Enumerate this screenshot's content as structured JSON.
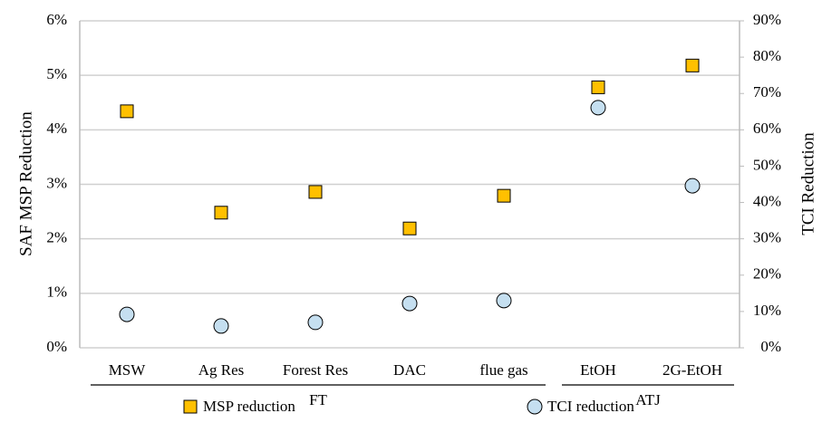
{
  "chart_data": {
    "type": "scatter",
    "categories": [
      "MSW",
      "Ag Res",
      "Forest Res",
      "DAC",
      "flue gas",
      "EtOH",
      "2G-EtOH"
    ],
    "groups": [
      {
        "name": "FT",
        "start": 0,
        "end": 4
      },
      {
        "name": "ATJ",
        "start": 5,
        "end": 6
      }
    ],
    "ylabel": "SAF MSP Reduction",
    "y2label": "TCI Reduction",
    "ylim": [
      0,
      6
    ],
    "yticks": [
      {
        "value": 0,
        "label": "0%"
      },
      {
        "value": 1,
        "label": "1%"
      },
      {
        "value": 2,
        "label": "2%"
      },
      {
        "value": 3,
        "label": "3%"
      },
      {
        "value": 4,
        "label": "4%"
      },
      {
        "value": 5,
        "label": "5%"
      },
      {
        "value": 6,
        "label": "6%"
      }
    ],
    "y2lim": [
      0,
      90
    ],
    "y2ticks": [
      {
        "value": 0,
        "label": "0%"
      },
      {
        "value": 10,
        "label": "10%"
      },
      {
        "value": 20,
        "label": "20%"
      },
      {
        "value": 30,
        "label": "30%"
      },
      {
        "value": 40,
        "label": "40%"
      },
      {
        "value": 50,
        "label": "50%"
      },
      {
        "value": 60,
        "label": "60%"
      },
      {
        "value": 70,
        "label": "70%"
      },
      {
        "value": 80,
        "label": "80%"
      },
      {
        "value": 90,
        "label": "90%"
      }
    ],
    "grid": true,
    "legend": "bottom",
    "series": [
      {
        "name": "MSP reduction",
        "color": "#ffc000",
        "marker": "square",
        "values": [
          4.34,
          2.48,
          2.86,
          2.19,
          2.79,
          4.78,
          5.18
        ]
      },
      {
        "name": "TCI reduction",
        "color": "#c5dff0",
        "marker": "circle",
        "axis": "y2",
        "values": [
          9.2,
          6.0,
          7.0,
          12.2,
          13.0,
          66.1,
          44.6
        ]
      }
    ]
  }
}
